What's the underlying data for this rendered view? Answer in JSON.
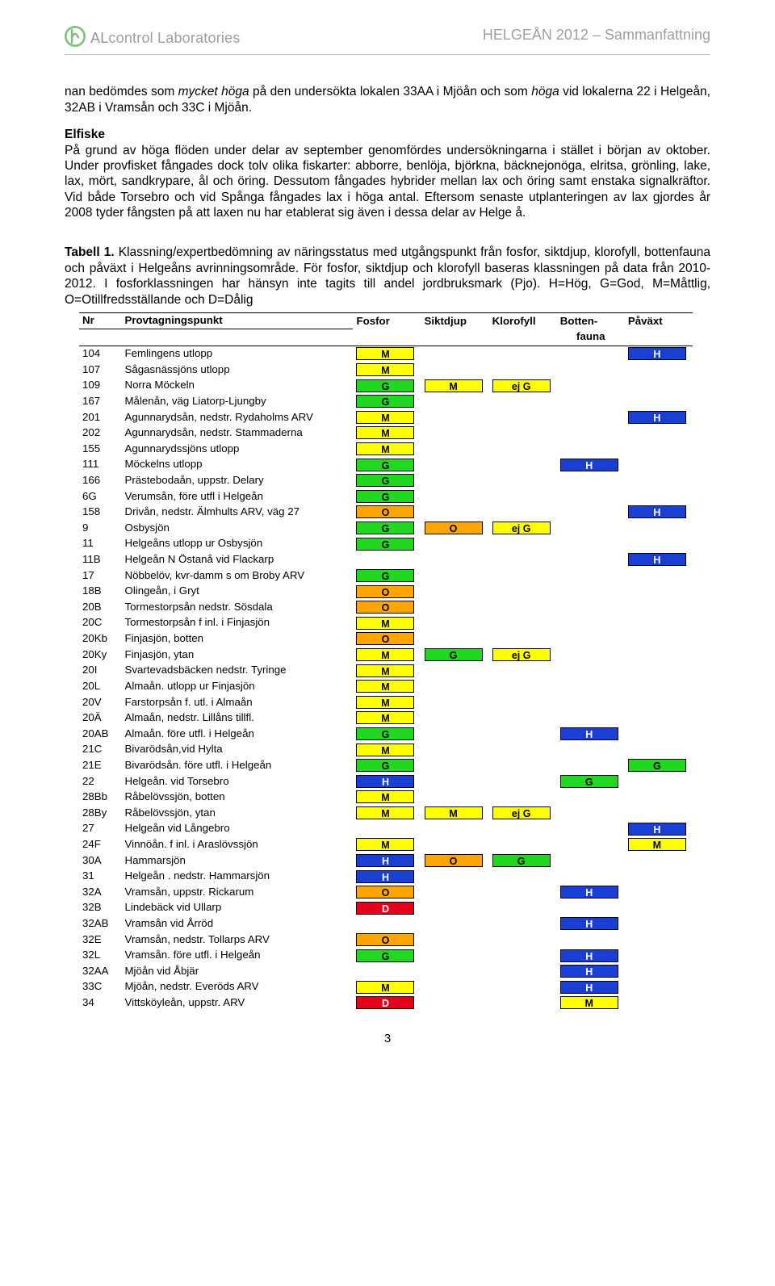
{
  "header": {
    "brand_al": "AL",
    "brand_rest": "control Laboratories",
    "doc_title": "HELGEÅN 2012 – Sammanfattning"
  },
  "p1": {
    "t1": "nan bedömdes som ",
    "i1": "mycket höga ",
    "t2": "på den undersökta lokalen 33AA i Mjöån och som ",
    "i2": "höga ",
    "t3": "vid lokalerna 22 i Helgeån, 32AB i Vramsån och 33C i Mjöån."
  },
  "p2_head": "Elfiske",
  "p2_body": "På grund av höga flöden under delar av september genomfördes undersökningarna i stället i början av oktober. Under provfisket fångades dock tolv olika fiskarter: abborre, benlöja, björkna, bäcknejonöga, elritsa, grönling, lake, lax, mört, sandkrypare, ål och öring. Dessutom fångades hybrider mellan lax och öring samt enstaka signalkräftor. Vid både Torsebro och vid Spånga fångades lax i höga antal. Eftersom senaste utplanteringen av lax gjordes år 2008 tyder fångsten på att laxen nu har etablerat sig även i dessa delar av Helge å.",
  "tabletext": {
    "a": "Tabell 1.",
    "b": " Klassning/expertbedömning av näringsstatus med utgångspunkt från fosfor, siktdjup, klorofyll, bottenfauna och påväxt i Helgeåns avrinningsområde. För fosfor, siktdjup och klorofyll baseras klassningen på data från 2010-2012. I fosforklassningen har hänsyn inte tagits till andel jordbruksmark (Pjo). H=Hög, G=God, M=Måttlig, O=Otillfredsställande och D=Dålig"
  },
  "columns": {
    "nr": "Nr",
    "name": "Provtagningspunkt",
    "c1": "Fosfor",
    "c2": "Siktdjup",
    "c3": "Klorofyll",
    "c4": "Botten-",
    "c4b": "fauna",
    "c5": "Påväxt"
  },
  "colors": {
    "H": "#1a3fd4",
    "G": "#20d820",
    "M": "#ffff00",
    "O": "#ffa500",
    "D": "#e5001c",
    "ejG": "#ffff00",
    "text_on_blue": "#ffffff",
    "text_on_green": "#000000",
    "text_on_yellow": "#000000",
    "text_on_orange": "#000000",
    "text_on_red": "#ffffff"
  },
  "rows": [
    {
      "nr": "104",
      "name": "Femlingens utlopp",
      "c": [
        "M",
        "",
        "",
        "",
        "H"
      ]
    },
    {
      "nr": "107",
      "name": "Sågasnässjöns utlopp",
      "c": [
        "M",
        "",
        "",
        "",
        ""
      ]
    },
    {
      "nr": "109",
      "name": "Norra Möckeln",
      "c": [
        "G",
        "M",
        "ej G",
        "",
        ""
      ]
    },
    {
      "nr": "167",
      "name": "Målenån, väg Liatorp-Ljungby",
      "c": [
        "G",
        "",
        "",
        "",
        ""
      ]
    },
    {
      "nr": "201",
      "name": "Agunnarydsån, nedstr. Rydaholms ARV",
      "c": [
        "M",
        "",
        "",
        "",
        "H"
      ]
    },
    {
      "nr": "202",
      "name": "Agunnarydsån, nedstr. Stammaderna",
      "c": [
        "M",
        "",
        "",
        "",
        ""
      ]
    },
    {
      "nr": "155",
      "name": "Agunnarydssjöns utlopp",
      "c": [
        "M",
        "",
        "",
        "",
        ""
      ]
    },
    {
      "nr": "111",
      "name": "Möckelns utlopp",
      "c": [
        "G",
        "",
        "",
        "H",
        ""
      ]
    },
    {
      "nr": "166",
      "name": "Prästebodaån, uppstr. Delary",
      "c": [
        "G",
        "",
        "",
        "",
        ""
      ]
    },
    {
      "nr": "6G",
      "name": "Verumsån, före utfl i Helgeån",
      "c": [
        "G",
        "",
        "",
        "",
        ""
      ]
    },
    {
      "nr": "158",
      "name": "Drivån, nedstr. Älmhults ARV, väg 27",
      "c": [
        "O",
        "",
        "",
        "",
        "H"
      ]
    },
    {
      "nr": "9",
      "name": "Osbysjön",
      "c": [
        "G",
        "O",
        "ej G",
        "",
        ""
      ]
    },
    {
      "nr": "11",
      "name": "Helgeåns utlopp ur Osbysjön",
      "c": [
        "G",
        "",
        "",
        "",
        ""
      ]
    },
    {
      "nr": "11B",
      "name": "Helgeån N Östanå vid Flackarp",
      "c": [
        "",
        "",
        "",
        "",
        "H"
      ]
    },
    {
      "nr": "17",
      "name": "Nöbbelöv, kvr-damm s om Broby ARV",
      "c": [
        "G",
        "",
        "",
        "",
        ""
      ]
    },
    {
      "nr": "18B",
      "name": "Olingeån, i Gryt",
      "c": [
        "O",
        "",
        "",
        "",
        ""
      ]
    },
    {
      "nr": "20B",
      "name": "Tormestorpsån nedstr. Sösdala",
      "c": [
        "O",
        "",
        "",
        "",
        ""
      ]
    },
    {
      "nr": "20C",
      "name": "Tormestorpsån f inl. i Finjasjön",
      "c": [
        "M",
        "",
        "",
        "",
        ""
      ]
    },
    {
      "nr": "20Kb",
      "name": "Finjasjön, botten",
      "c": [
        "O",
        "",
        "",
        "",
        ""
      ]
    },
    {
      "nr": "20Ky",
      "name": "Finjasjön, ytan",
      "c": [
        "M",
        "G",
        "ej G",
        "",
        ""
      ]
    },
    {
      "nr": "20I",
      "name": "Svartevadsbäcken nedstr. Tyringe",
      "c": [
        "M",
        "",
        "",
        "",
        ""
      ]
    },
    {
      "nr": "20L",
      "name": "Almaån. utlopp ur Finjasjön",
      "c": [
        "M",
        "",
        "",
        "",
        ""
      ]
    },
    {
      "nr": "20V",
      "name": "Farstorpsån f. utl. i Almaån",
      "c": [
        "M",
        "",
        "",
        "",
        ""
      ]
    },
    {
      "nr": "20Ä",
      "name": "Almaån, nedstr. Lillåns tillfl.",
      "c": [
        "M",
        "",
        "",
        "",
        ""
      ]
    },
    {
      "nr": "20AB",
      "name": "Almaån. före utfl. i Helgeån",
      "c": [
        "G",
        "",
        "",
        "H",
        ""
      ]
    },
    {
      "nr": "21C",
      "name": "Bivarödsån,vid Hylta",
      "c": [
        "M",
        "",
        "",
        "",
        ""
      ]
    },
    {
      "nr": "21E",
      "name": "Bivarödsån. före utfl. i Helgeån",
      "c": [
        "G",
        "",
        "",
        "",
        "G"
      ]
    },
    {
      "nr": "22",
      "name": "Helgeån. vid Torsebro",
      "c": [
        "H",
        "",
        "",
        "G",
        ""
      ]
    },
    {
      "nr": "28Bb",
      "name": "Råbelövssjön, botten",
      "c": [
        "M",
        "",
        "",
        "",
        ""
      ]
    },
    {
      "nr": "28By",
      "name": "Råbelövssjön, ytan",
      "c": [
        "M",
        "M",
        "ej G",
        "",
        ""
      ]
    },
    {
      "nr": "27",
      "name": "Helgeån vid Långebro",
      "c": [
        "",
        "",
        "",
        "",
        "H"
      ]
    },
    {
      "nr": "24F",
      "name": "Vinnöån. f inl. i Araslövssjön",
      "c": [
        "M",
        "",
        "",
        "",
        "M"
      ]
    },
    {
      "nr": "30A",
      "name": "Hammarsjön",
      "c": [
        "H",
        "O",
        "G",
        "",
        ""
      ]
    },
    {
      "nr": "31",
      "name": "Helgeån . nedstr. Hammarsjön",
      "c": [
        "H",
        "",
        "",
        "",
        ""
      ]
    },
    {
      "nr": "32A",
      "name": "Vramsån, uppstr. Rickarum",
      "c": [
        "O",
        "",
        "",
        "H",
        ""
      ]
    },
    {
      "nr": "32B",
      "name": "Lindebäck vid Ullarp",
      "c": [
        "D",
        "",
        "",
        "",
        ""
      ]
    },
    {
      "nr": "32AB",
      "name": "Vramsån vid Årröd",
      "c": [
        "",
        "",
        "",
        "H",
        ""
      ]
    },
    {
      "nr": "32E",
      "name": "Vramsån, nedstr. Tollarps ARV",
      "c": [
        "O",
        "",
        "",
        "",
        ""
      ]
    },
    {
      "nr": "32L",
      "name": "Vramsån. före utfl. i Helgeån",
      "c": [
        "G",
        "",
        "",
        "H",
        ""
      ]
    },
    {
      "nr": "32AA",
      "name": "Mjöån vid Åbjär",
      "c": [
        "",
        "",
        "",
        "H",
        ""
      ]
    },
    {
      "nr": "33C",
      "name": "Mjöån, nedstr. Everöds ARV",
      "c": [
        "M",
        "",
        "",
        "H",
        ""
      ]
    },
    {
      "nr": "34",
      "name": "Vittsköyleån, uppstr. ARV",
      "c": [
        "D",
        "",
        "",
        "M",
        ""
      ]
    }
  ],
  "page_number": "3"
}
